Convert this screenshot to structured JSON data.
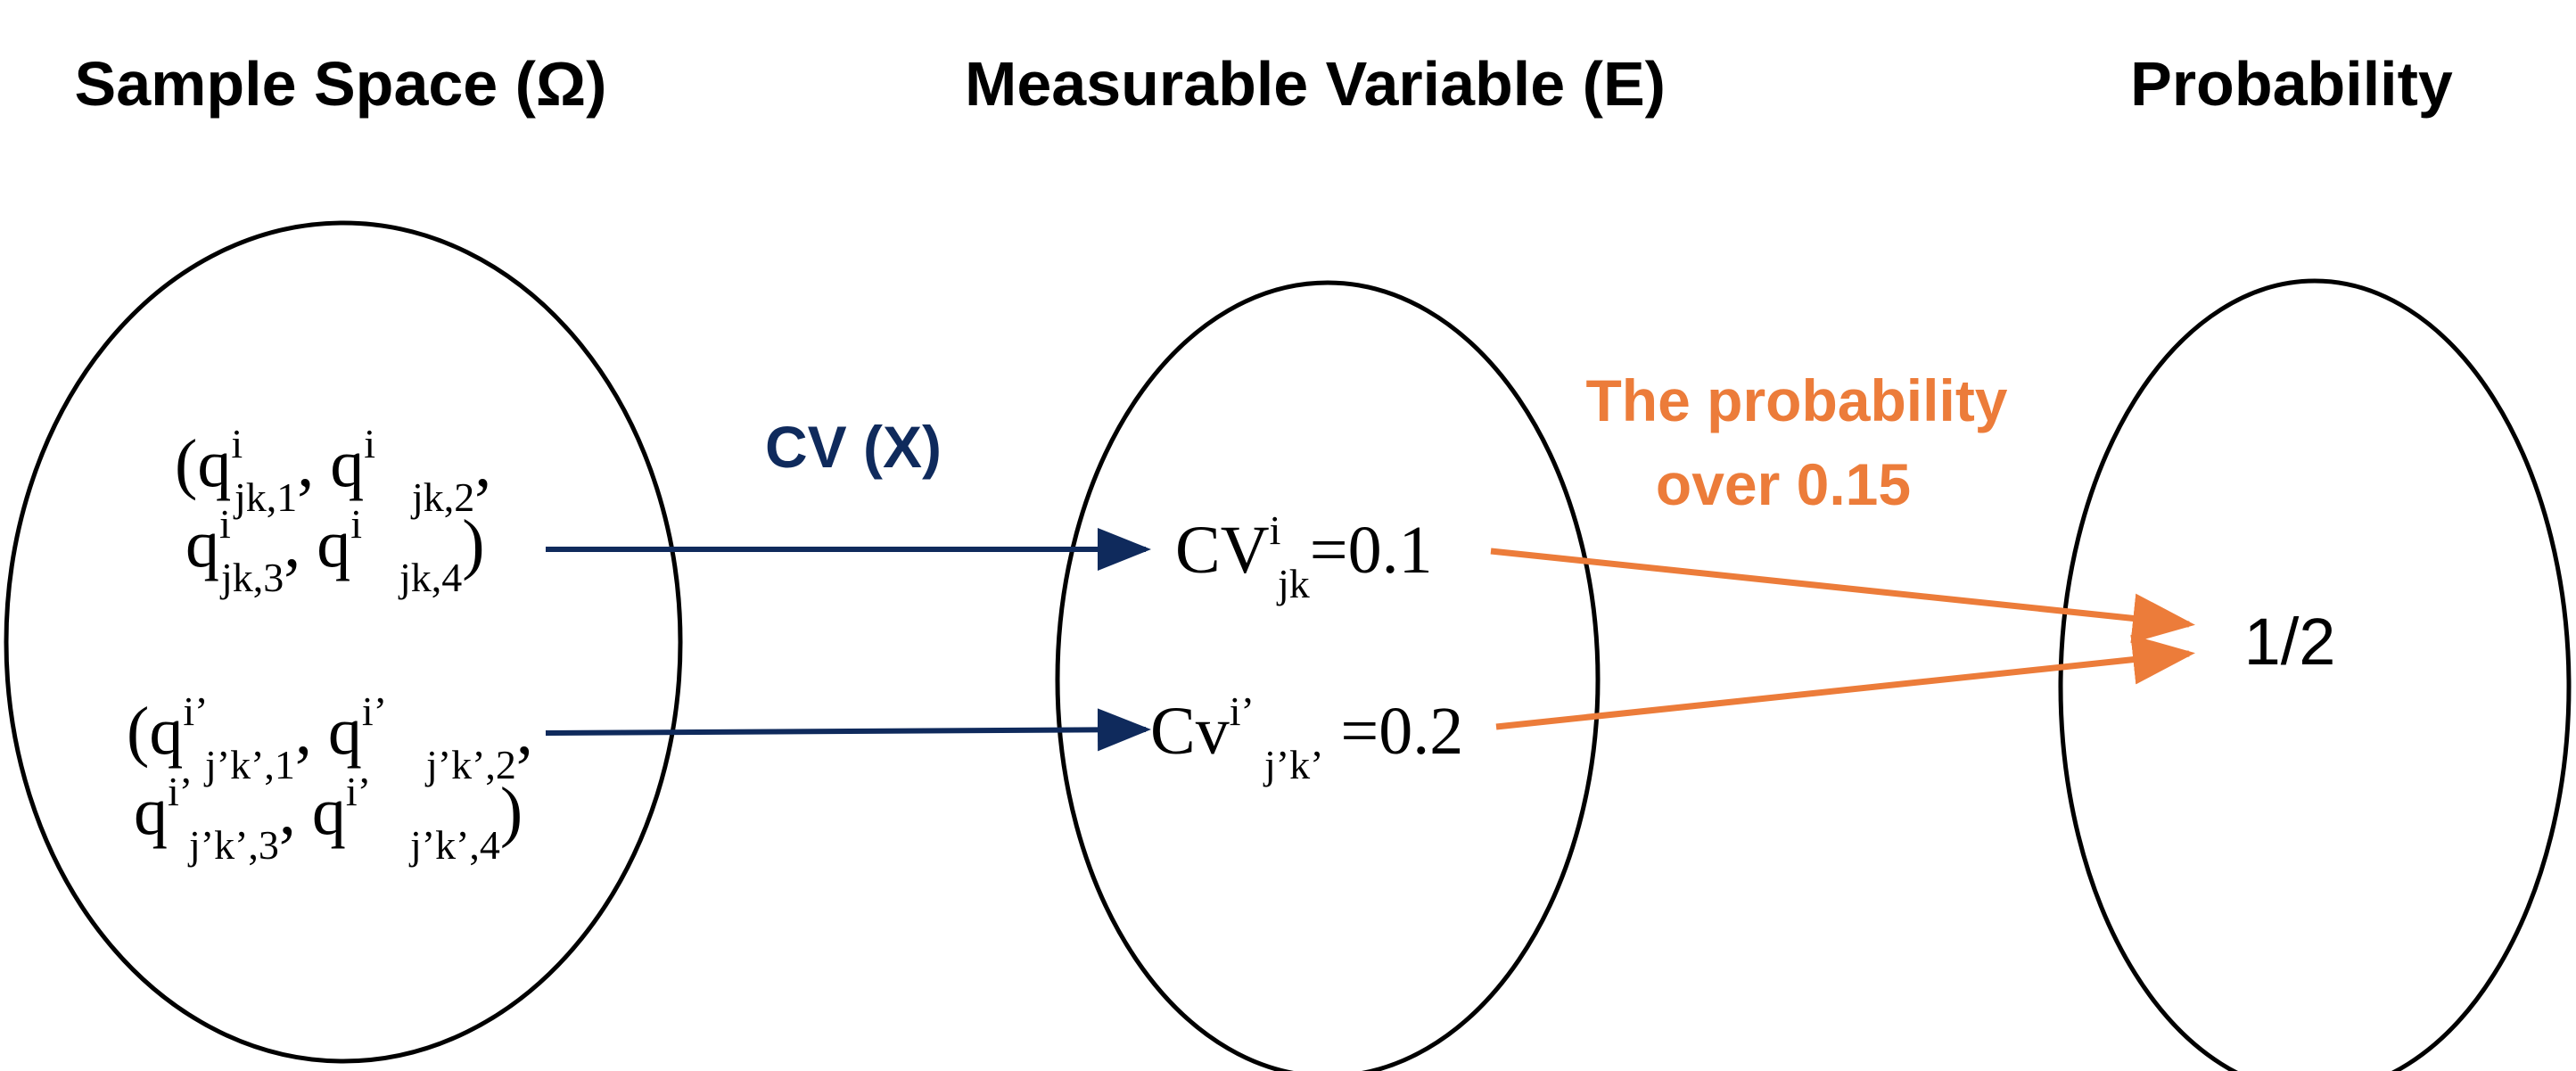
{
  "headings": {
    "sample_space": "Sample Space (Ω)",
    "measurable_variable": "Measurable Variable (E)",
    "probability": "Probability"
  },
  "sample_space": {
    "tuple_a": {
      "open": "(",
      "q": "q",
      "sup": "i",
      "sub1": "jk,1",
      "sub2": "jk,2",
      "sub3": "jk,3",
      "sub4": "jk,4",
      "comma": ",",
      "close": ")"
    },
    "tuple_b": {
      "open": "(",
      "q": "q",
      "sup": "i’",
      "sub1": "j’k’,1",
      "sub2": "j’k’,2",
      "sub3": "j’k’,3",
      "sub4": "j’k’,4",
      "comma": ",",
      "close": ")"
    }
  },
  "measurable_variable": {
    "value_a": {
      "base": "CV",
      "sup": "i",
      "sub": "jk",
      "eq": "=0.1"
    },
    "value_b": {
      "base": "Cv",
      "sup": "i’",
      "sub": "j’k’",
      "eq": " =0.2"
    }
  },
  "probability": {
    "value": "1/2"
  },
  "arrow_labels": {
    "cv_mapping": "CV (X)",
    "probability_line1": "The probability",
    "probability_line2": "over 0.15"
  },
  "colors": {
    "cv_arrow": "#0f2a5c",
    "probability_arrow": "#ec7c3a",
    "outline": "#000000"
  }
}
